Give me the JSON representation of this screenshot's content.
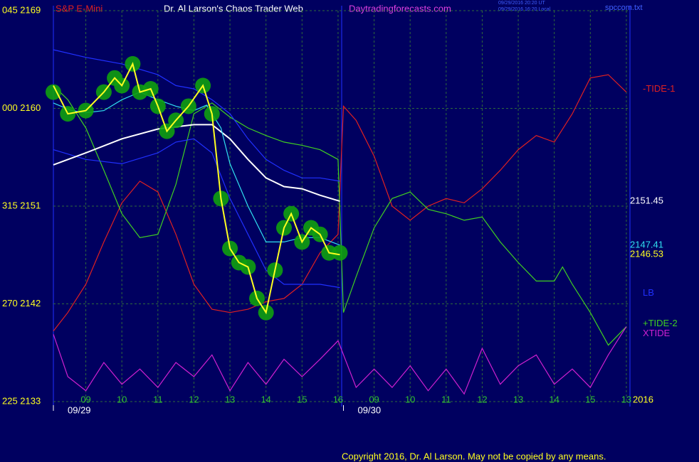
{
  "chart_data": {
    "type": "line",
    "instrument": "S&P E-Mini",
    "title": "Dr. Al Larson's Chaos Trader Web",
    "site": "Daytradingforecasts.com",
    "timestamps": [
      "09/29/2016 20:20 UT",
      "09/29/2016 16:20 Local"
    ],
    "file": "spccom.txt",
    "copyright": "Copyright 2016, Dr. Al Larson. May not be copied by any means.",
    "year": "2016",
    "dates": [
      {
        "value": 0.1,
        "label": "09/29"
      },
      {
        "value": 8.15,
        "label": "09/30"
      }
    ],
    "xlim": [
      0.1,
      16.1
    ],
    "ylim": [
      2133,
      2169
    ],
    "xticks": [
      {
        "value": 1,
        "label": "09"
      },
      {
        "value": 2,
        "label": "10"
      },
      {
        "value": 3,
        "label": "11"
      },
      {
        "value": 4,
        "label": "12"
      },
      {
        "value": 5,
        "label": "13"
      },
      {
        "value": 6,
        "label": "14"
      },
      {
        "value": 7,
        "label": "15"
      },
      {
        "value": 8,
        "label": "16"
      },
      {
        "value": 9,
        "label": "09"
      },
      {
        "value": 10,
        "label": "10"
      },
      {
        "value": 11,
        "label": "11"
      },
      {
        "value": 12,
        "label": "12"
      },
      {
        "value": 13,
        "label": "13"
      },
      {
        "value": 14,
        "label": "14"
      },
      {
        "value": 15,
        "label": "15"
      },
      {
        "value": 16,
        "label": "13"
      }
    ],
    "yticks": [
      {
        "value": 2169,
        "label": "045 2169"
      },
      {
        "value": 2160,
        "label": "000 2160"
      },
      {
        "value": 2151,
        "label": "315 2151"
      },
      {
        "value": 2142,
        "label": "270 2142"
      },
      {
        "value": 2133,
        "label": "225 2133"
      }
    ],
    "grid": true,
    "series": [
      {
        "name": "-TIDE-1",
        "color": "#e02020",
        "x": [
          0.1,
          0.5,
          1,
          1.5,
          2,
          2.5,
          3,
          3.5,
          4,
          4.5,
          5,
          5.5,
          6,
          6.5,
          7,
          7.5,
          8,
          8.15,
          8.5,
          9,
          9.5,
          10,
          10.5,
          11,
          11.5,
          12,
          12.5,
          13,
          13.5,
          14,
          14.5,
          15,
          15.5,
          16
        ],
        "values": [
          2139.5,
          2141.2,
          2143.8,
          2147.7,
          2151.3,
          2153.3,
          2152.3,
          2148.4,
          2143.8,
          2141.5,
          2141.2,
          2141.5,
          2142.2,
          2142.5,
          2143.8,
          2146.7,
          2148.4,
          2160.2,
          2158.9,
          2155.6,
          2151.0,
          2149.7,
          2151.0,
          2151.7,
          2151.3,
          2152.6,
          2154.3,
          2156.2,
          2157.5,
          2156.9,
          2159.5,
          2162.8,
          2163.1,
          2161.5
        ]
      },
      {
        "name": "+TIDE-2",
        "color": "#40d020",
        "x": [
          0.1,
          0.5,
          1,
          1.5,
          2,
          2.5,
          3,
          3.5,
          4,
          4.5,
          5,
          5.5,
          6,
          6.5,
          7,
          7.5,
          8,
          8.15,
          8.5,
          9,
          9.5,
          10,
          10.5,
          11,
          11.5,
          12,
          12.5,
          13,
          13.5,
          14,
          14.23,
          14.5,
          15,
          15.5,
          16
        ],
        "values": [
          2162.1,
          2160.8,
          2158.2,
          2154.3,
          2150.3,
          2148.1,
          2148.4,
          2153.0,
          2159.5,
          2160.5,
          2159.2,
          2158.2,
          2157.5,
          2156.9,
          2156.6,
          2156.2,
          2155.3,
          2141.2,
          2144.5,
          2149.0,
          2151.7,
          2152.3,
          2150.7,
          2150.3,
          2149.7,
          2150.0,
          2147.7,
          2145.8,
          2144.1,
          2144.1,
          2145.4,
          2143.8,
          2141.2,
          2138.2,
          2139.9
        ]
      },
      {
        "name": "XTIDE",
        "color": "#d020d0",
        "x": [
          0.1,
          0.5,
          1,
          1.5,
          2,
          2.5,
          3,
          3.5,
          4,
          4.5,
          5,
          5.5,
          6,
          6.5,
          7,
          7.5,
          8,
          8.5,
          9,
          9.5,
          10,
          10.5,
          11,
          11.5,
          12,
          12.5,
          13,
          13.5,
          14,
          14.5,
          15,
          15.5,
          16
        ],
        "values": [
          2139.2,
          2135.3,
          2134.0,
          2136.6,
          2134.6,
          2136.0,
          2134.3,
          2136.6,
          2135.3,
          2137.3,
          2134.0,
          2136.6,
          2134.6,
          2136.9,
          2135.3,
          2136.9,
          2138.6,
          2134.3,
          2136.0,
          2134.3,
          2136.3,
          2134.0,
          2136.0,
          2133.7,
          2137.9,
          2134.6,
          2136.3,
          2137.3,
          2134.6,
          2136.0,
          2134.3,
          2137.3,
          2139.9
        ]
      },
      {
        "color": "#2030ff",
        "x": [
          0.1,
          1,
          2,
          3,
          3.5,
          4,
          4.5,
          5,
          5.5,
          6,
          6.5,
          7,
          7.5,
          8.05
        ],
        "values": [
          2165.4,
          2164.7,
          2164.1,
          2163.1,
          2162.1,
          2161.8,
          2160.8,
          2159.5,
          2157.2,
          2155.3,
          2154.3,
          2153.6,
          2153.6,
          2153.3
        ]
      },
      {
        "name": "LB",
        "color": "#2030ff",
        "x": [
          0.1,
          1,
          2,
          3,
          3.5,
          4,
          4.5,
          5,
          5.5,
          6,
          6.5,
          7,
          7.5,
          8.05
        ],
        "values": [
          2156.2,
          2155.3,
          2154.9,
          2155.9,
          2156.9,
          2157.2,
          2155.9,
          2151.7,
          2148.4,
          2145.1,
          2143.8,
          2143.8,
          2143.8,
          2143.5
        ]
      },
      {
        "color": "#ffffff",
        "show_last": true,
        "x": [
          0.1,
          1,
          2,
          3,
          4,
          4.5,
          5,
          5.5,
          6,
          6.5,
          7,
          7.5,
          8.05
        ],
        "values": [
          2154.8,
          2155.9,
          2157.2,
          2158.1,
          2158.5,
          2158.5,
          2157.2,
          2155.3,
          2153.6,
          2152.8,
          2152.6,
          2152.0,
          2151.45
        ]
      },
      {
        "color": "#30e0f0",
        "show_last": true,
        "x": [
          0.1,
          0.6,
          1,
          1.5,
          2,
          2.5,
          3,
          3.5,
          4,
          4.35,
          4.75,
          5,
          5.5,
          6,
          6.5,
          7,
          7.5,
          8.05
        ],
        "values": [
          2160.5,
          2159.8,
          2159.6,
          2159.8,
          2160.8,
          2161.5,
          2160.8,
          2160.2,
          2159.8,
          2160.3,
          2158.2,
          2154.9,
          2151.0,
          2147.7,
          2147.7,
          2148.1,
          2148.1,
          2147.41
        ]
      },
      {
        "color": "#10a010",
        "style": "blobs",
        "x": [
          0.1,
          0.5,
          1,
          1.5,
          1.8,
          2,
          2.3,
          2.5,
          2.8,
          3,
          3.25,
          3.5,
          3.85,
          4.25,
          4.5,
          4.75,
          5,
          5.25,
          5.5,
          5.75,
          6,
          6.25,
          6.5,
          6.7,
          7,
          7.25,
          7.5,
          7.75,
          8.05
        ],
        "values": [
          2161.5,
          2159.5,
          2159.8,
          2161.5,
          2162.8,
          2162.1,
          2164.1,
          2161.5,
          2161.8,
          2160.2,
          2157.9,
          2158.9,
          2160.2,
          2162.1,
          2159.5,
          2151.7,
          2147.1,
          2145.8,
          2145.4,
          2142.5,
          2141.2,
          2145.1,
          2149.0,
          2150.3,
          2147.7,
          2149.0,
          2148.4,
          2146.7,
          2146.7
        ]
      },
      {
        "color": "#ffff20",
        "show_last": true,
        "x": [
          0.1,
          0.5,
          1,
          1.5,
          1.8,
          2,
          2.3,
          2.5,
          2.8,
          3,
          3.25,
          3.5,
          3.85,
          4.25,
          4.5,
          4.75,
          5,
          5.25,
          5.5,
          5.75,
          6,
          6.25,
          6.5,
          6.7,
          7,
          7.25,
          7.5,
          7.75,
          8.05
        ],
        "values": [
          2162.1,
          2159.5,
          2159.8,
          2161.5,
          2162.8,
          2162.1,
          2164.1,
          2161.5,
          2161.8,
          2160.2,
          2157.9,
          2158.9,
          2160.2,
          2162.1,
          2159.5,
          2151.7,
          2147.1,
          2145.8,
          2145.4,
          2142.5,
          2141.2,
          2145.1,
          2149.0,
          2150.3,
          2147.7,
          2149.0,
          2148.4,
          2146.7,
          2146.53
        ]
      }
    ]
  }
}
